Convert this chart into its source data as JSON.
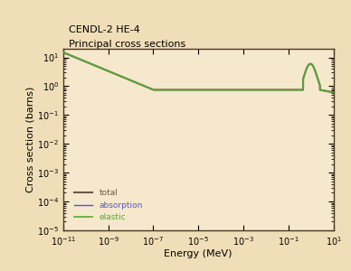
{
  "title_line1": "CENDL-2 HE-4",
  "title_line2": "Principal cross sections",
  "xlabel": "Energy (MeV)",
  "ylabel": "Cross section (barns)",
  "bg_color": "#f0deb8",
  "plot_bg_color": "#f5e8cc",
  "border_color": "#4a3820",
  "xlim_log": [
    -11,
    1
  ],
  "ylim_log": [
    -5,
    1.3
  ],
  "legend_labels": [
    "total",
    "absorption",
    "elastic"
  ],
  "legend_colors": [
    "#6b5a4a",
    "#5555cc",
    "#55aa33"
  ],
  "total_color": "#6b5a4a",
  "absorption_color": "#5555cc",
  "elastic_color": "#55aa33",
  "title_fontsize": 8,
  "axis_fontsize": 8,
  "tick_fontsize": 7
}
